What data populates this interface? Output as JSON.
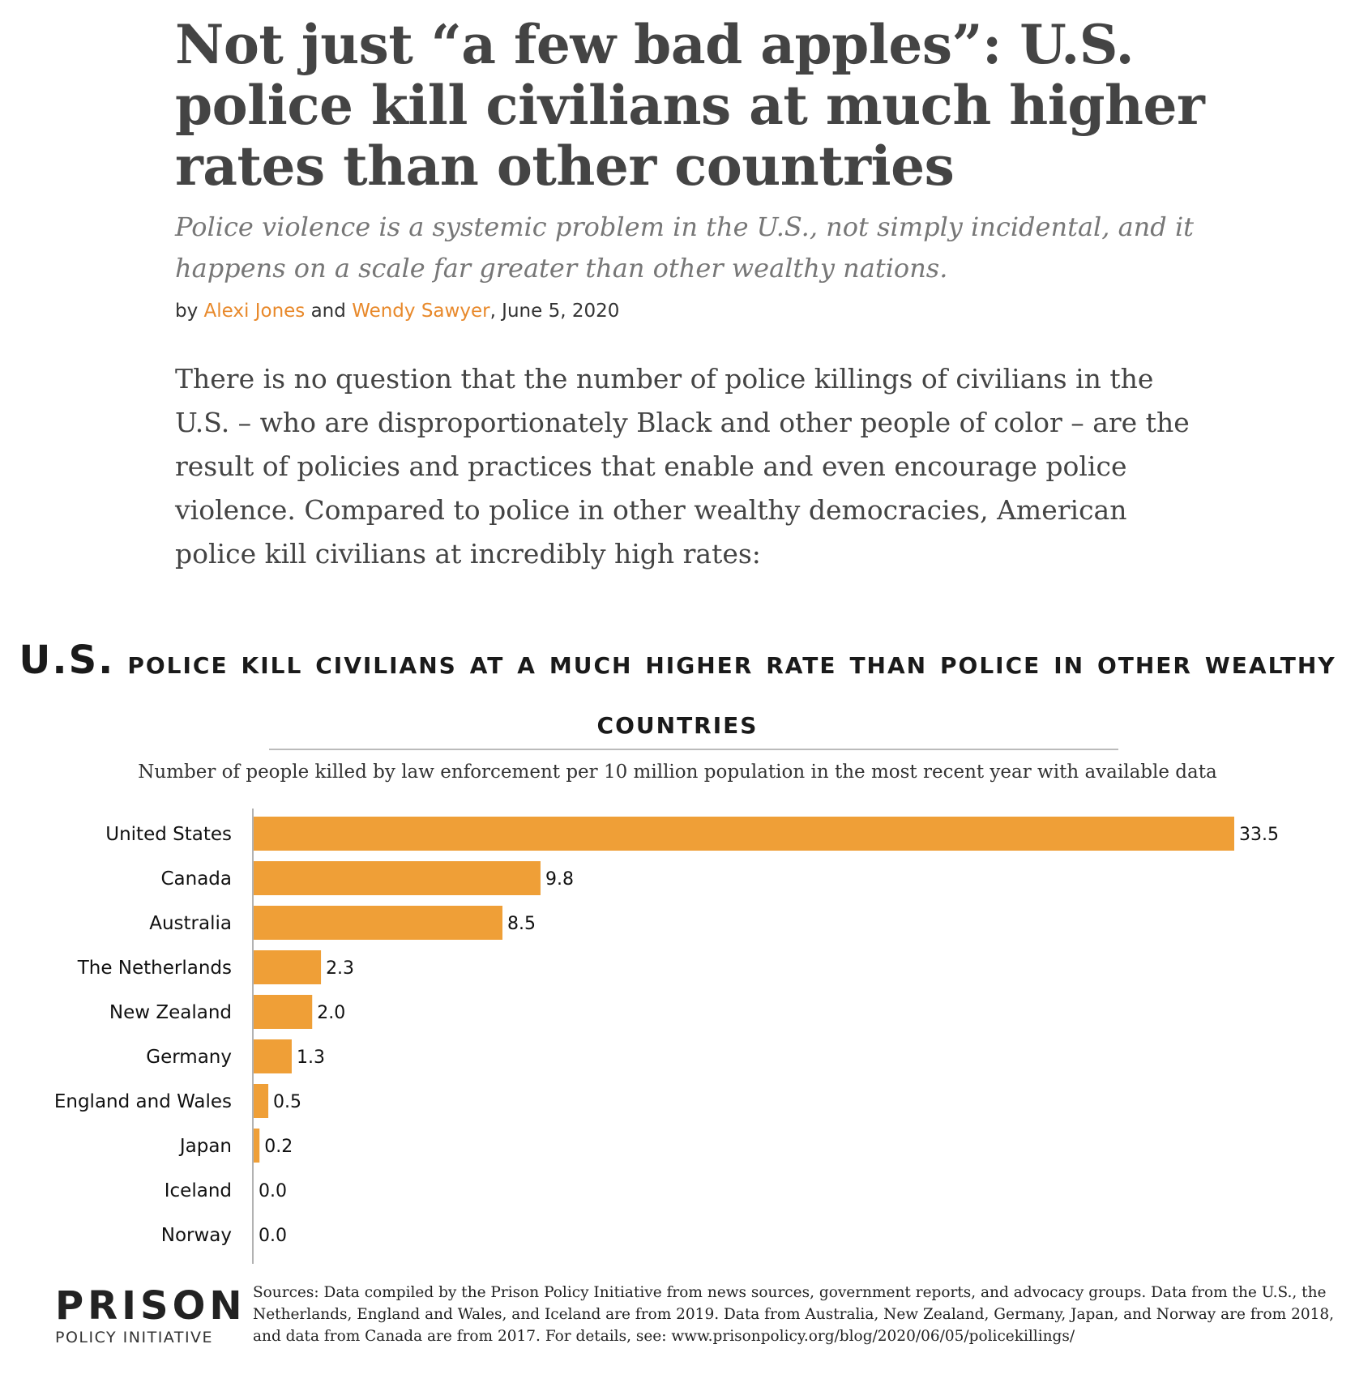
{
  "article": {
    "headline": "Not just “a few bad apples”: U.S. police kill civilians at much higher rates than other countries",
    "dek": "Police violence is a systemic problem in the U.S., not simply incidental, and it happens on a scale far greater than other wealthy nations.",
    "byline": {
      "prefix": "by ",
      "author1": "Alexi Jones",
      "conjunction": " and ",
      "author2": "Wendy Sawyer",
      "date": ", June 5, 2020"
    },
    "body": "There is no question that the number of police killings of civilians in the U.S. – who are disproportionately Black and other people of color – are the result of policies and practices that enable and even encourage police violence. Compared to police in other wealthy democracies, American police kill civilians at incredibly high rates:"
  },
  "chart_data": {
    "type": "bar",
    "orientation": "horizontal",
    "title_lead": "U.S.",
    "title_rest": "police kill civilians at a much higher rate than police in other wealthy countries",
    "subtitle": "Number of people killed by law enforcement per 10 million population in the most recent year with available data",
    "categories": [
      "United States",
      "Canada",
      "Australia",
      "The Netherlands",
      "New Zealand",
      "Germany",
      "England and Wales",
      "Japan",
      "Iceland",
      "Norway"
    ],
    "values": [
      33.5,
      9.8,
      8.5,
      2.3,
      2.0,
      1.3,
      0.5,
      0.2,
      0.0,
      0.0
    ],
    "value_labels": [
      "33.5",
      "9.8",
      "8.5",
      "2.3",
      "2.0",
      "1.3",
      "0.5",
      "0.2",
      "0.0",
      "0.0"
    ],
    "xlim": [
      0,
      33.5
    ],
    "bar_color": "#ef9f37",
    "grid": false,
    "legend": "none"
  },
  "footer": {
    "logo_top": "PRISON",
    "logo_bottom": "POLICY INITIATIVE",
    "sources": "Sources: Data compiled by the Prison Policy Initiative from news sources, government reports, and advocacy groups. Data from the U.S., the Netherlands, England and Wales, and Iceland are from 2019. Data from Australia, New Zealand, Germany, Japan, and Norway are from 2018, and data from Canada are from 2017. For details,  see: www.prisonpolicy.org/blog/2020/06/05/policekillings/"
  },
  "colors": {
    "accent_link": "#e8892b",
    "headline": "#444444"
  }
}
